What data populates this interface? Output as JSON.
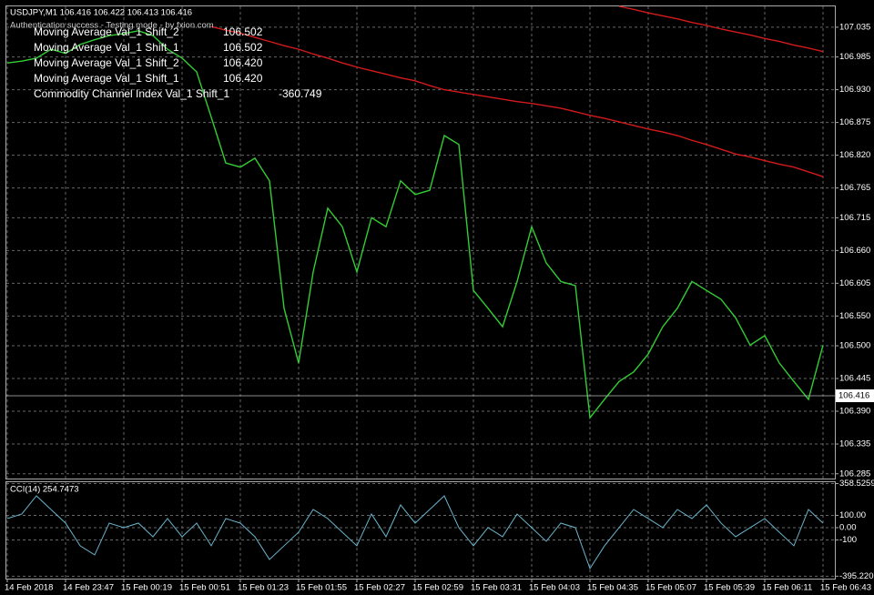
{
  "chart_data": [
    {
      "type": "line",
      "title": "USDJPY,M1  106.416 106.422 106.413 106.416",
      "subtitle": "Authentication success - Testing mode - by fxion.com",
      "annotations": [
        {
          "text": "Moving Average  Val_1  Shift_2",
          "value": "106.502"
        },
        {
          "text": "Moving Average  Val_1  Shift_1",
          "value": "106.502"
        },
        {
          "text": "Moving Average  Val_1  Shift_2",
          "value": "106.420"
        },
        {
          "text": "Moving Average  Val_1  Shift_1",
          "value": "106.420"
        },
        {
          "text": "Commodity Channel Index  Val_1  Shift_1",
          "value": "-360.749"
        }
      ],
      "categories": [
        "14 Feb 2018",
        null,
        null,
        null,
        "14 Feb 23:47",
        null,
        null,
        null,
        "15 Feb 00:19",
        null,
        null,
        null,
        "15 Feb 00:51",
        null,
        null,
        null,
        "15 Feb 01:23",
        null,
        null,
        null,
        "15 Feb 01:55",
        null,
        null,
        null,
        "15 Feb 02:27",
        null,
        null,
        null,
        "15 Feb 02:59",
        null,
        null,
        null,
        "15 Feb 03:31",
        null,
        null,
        null,
        "15 Feb 04:03",
        null,
        null,
        null,
        "15 Feb 04:35",
        null,
        null,
        null,
        "15 Feb 05:07",
        null,
        null,
        null,
        "15 Feb 05:39",
        null,
        null,
        null,
        "15 Feb 06:11",
        null,
        null,
        null,
        "15 Feb 06:43"
      ],
      "series": [
        {
          "color": "#33cc33",
          "values": [
            106.975,
            106.978,
            106.983,
            106.998,
            106.991,
            107.006,
            107.014,
            107.021,
            107.024,
            107.029,
            107.021,
            106.998,
            106.983,
            106.96,
            106.884,
            106.807,
            106.8,
            106.815,
            106.777,
            106.563,
            106.471,
            106.624,
            106.731,
            106.7,
            106.624,
            106.715,
            106.7,
            106.777,
            106.754,
            106.761,
            106.853,
            106.838,
            106.593,
            106.563,
            106.532,
            106.608,
            106.7,
            106.639,
            106.608,
            106.601,
            106.379,
            106.41,
            106.44,
            106.456,
            106.486,
            106.532,
            106.563,
            106.608,
            106.593,
            106.578,
            106.547,
            106.501,
            106.517,
            106.471,
            106.44,
            106.41,
            106.501
          ]
        },
        {
          "color": "#d41a1a",
          "values": [
            null,
            null,
            null,
            null,
            null,
            null,
            null,
            null,
            null,
            null,
            null,
            null,
            null,
            null,
            107.036,
            107.03,
            107.025,
            107.018,
            107.011,
            107.004,
            106.998,
            106.99,
            106.983,
            106.975,
            106.968,
            106.962,
            106.956,
            106.95,
            106.945,
            106.937,
            106.93,
            106.926,
            106.922,
            106.918,
            106.914,
            106.91,
            106.907,
            106.903,
            106.899,
            106.893,
            106.887,
            106.882,
            106.876,
            106.87,
            106.864,
            106.859,
            106.853,
            106.845,
            106.838,
            106.83,
            106.822,
            106.817,
            106.811,
            106.805,
            106.8,
            106.792,
            106.784
          ]
        },
        {
          "color": "#d41a1a",
          "values": [
            null,
            null,
            null,
            null,
            null,
            null,
            null,
            null,
            null,
            null,
            null,
            null,
            null,
            null,
            null,
            null,
            null,
            null,
            null,
            null,
            null,
            null,
            null,
            null,
            null,
            null,
            null,
            null,
            null,
            null,
            null,
            null,
            null,
            null,
            null,
            null,
            null,
            null,
            null,
            null,
            null,
            null,
            107.07,
            107.065,
            107.059,
            107.054,
            107.049,
            107.043,
            107.038,
            107.032,
            107.027,
            107.022,
            107.016,
            107.011,
            107.005,
            107.0,
            106.994
          ]
        }
      ],
      "current_price": 106.416,
      "ylim": [
        106.277,
        107.07
      ],
      "yticks": [
        107.035,
        106.985,
        {
          "value": 106.93,
          "label": "106.930"
        },
        106.875,
        {
          "value": 106.82,
          "label": "106.820"
        },
        106.765,
        106.715,
        {
          "value": 106.66,
          "label": "106.660"
        },
        106.605,
        {
          "value": 106.55,
          "label": "106.550"
        },
        {
          "value": 106.5,
          "label": "106.500"
        },
        106.445,
        {
          "value": 106.39,
          "label": "106.390"
        },
        106.335,
        106.285
      ],
      "grid": true
    },
    {
      "type": "line",
      "title": "CCI(14) 254.7473",
      "series": [
        {
          "color": "#6ab4cc",
          "values": [
            74,
            111,
            259,
            148,
            37,
            -148,
            -222,
            37,
            0,
            37,
            -74,
            74,
            -74,
            37,
            -148,
            74,
            37,
            -74,
            -259,
            -148,
            -37,
            148,
            74,
            -37,
            -148,
            111,
            -74,
            185,
            37,
            148,
            259,
            0,
            -148,
            0,
            -74,
            111,
            0,
            -111,
            37,
            0,
            -333,
            -148,
            0,
            148,
            74,
            0,
            148,
            74,
            185,
            37,
            -74,
            0,
            74,
            -37,
            -148,
            148,
            37
          ]
        }
      ],
      "ylim": [
        -415,
        370
      ],
      "yticks": [
        358.5259,
        {
          "value": 100,
          "label": "100.00"
        },
        {
          "value": 0,
          "label": "0.00"
        },
        -100,
        -395.2207
      ],
      "grid": true
    }
  ]
}
